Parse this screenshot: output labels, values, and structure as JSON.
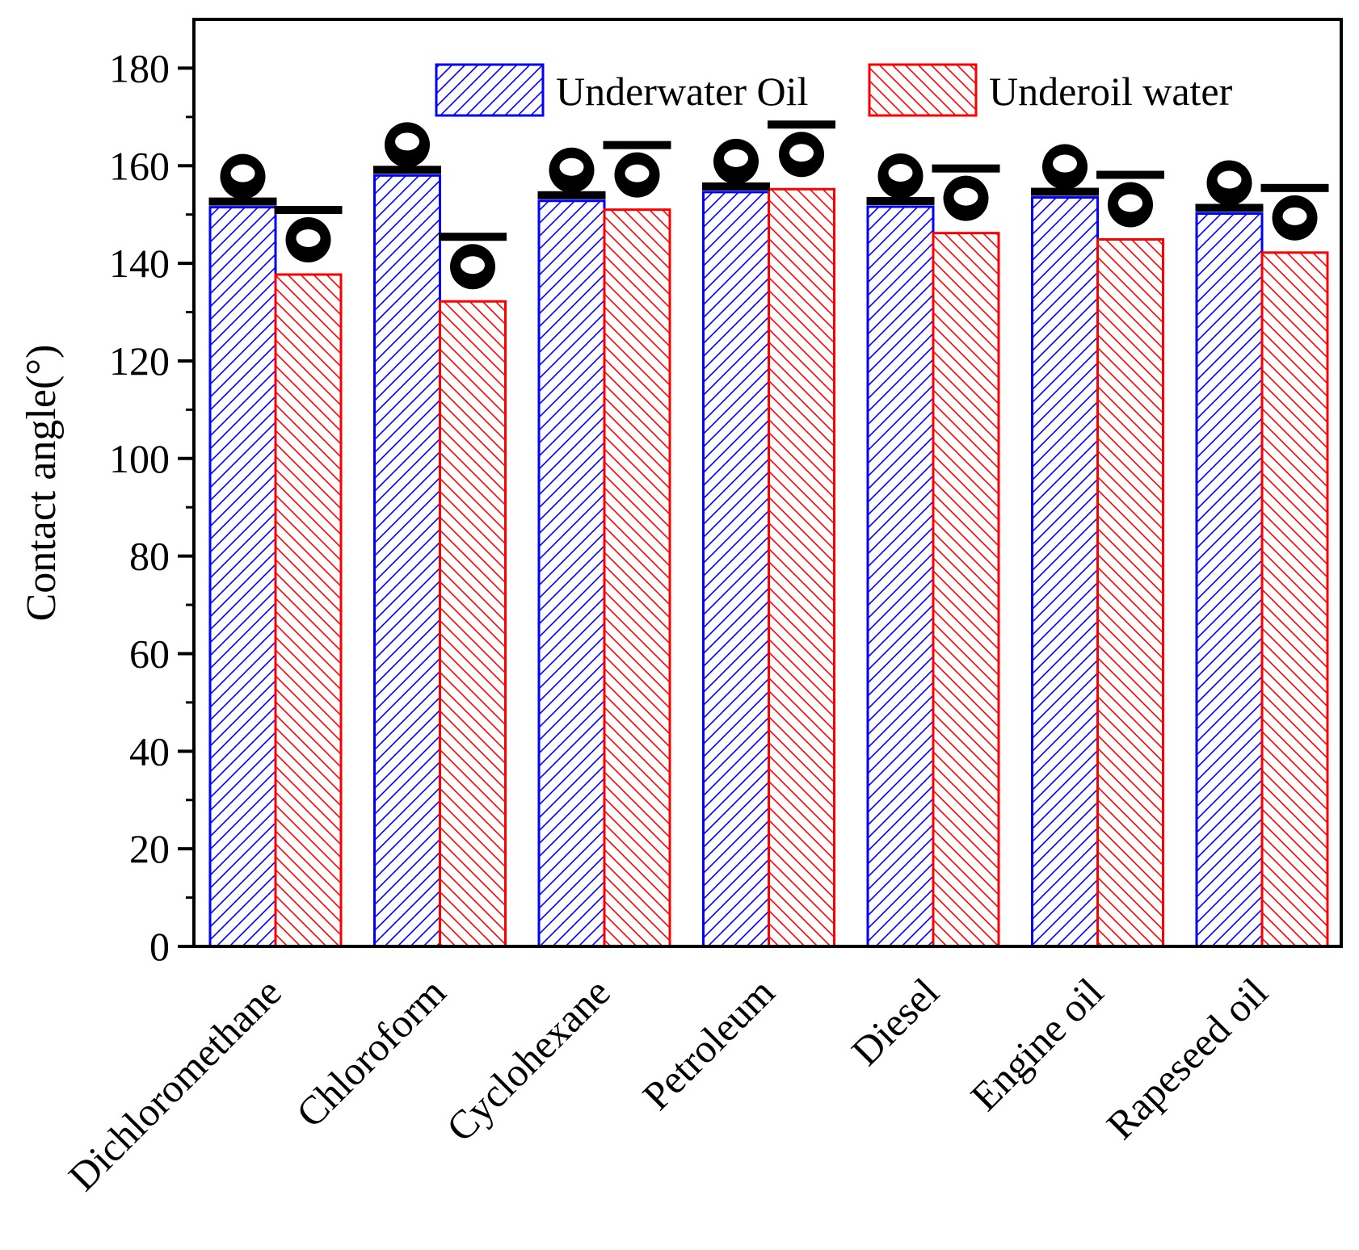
{
  "chart_data": {
    "type": "bar",
    "title": "",
    "xlabel": "",
    "ylabel": "Contact angle(°)",
    "ylim": [
      0,
      190
    ],
    "yticks": [
      0,
      20,
      40,
      60,
      80,
      100,
      120,
      140,
      160,
      180
    ],
    "categories": [
      "Dichloromethane",
      "Chloroform",
      "Cyclohexane",
      "Petroleum",
      "Diesel",
      "Engine oil",
      "Rapeseed oil"
    ],
    "series": [
      {
        "name": "Underwater Oil",
        "color": "#0000ff",
        "hatch": "forward",
        "values": [
          151.5,
          158,
          152.8,
          154.6,
          151.6,
          153.5,
          150.2
        ]
      },
      {
        "name": "Underoil water",
        "color": "#ff0000",
        "hatch": "backward",
        "values": [
          137.7,
          132.2,
          151,
          155.2,
          146.2,
          144.9,
          142.2
        ]
      }
    ],
    "legend": {
      "position": "top-right"
    },
    "grid": false,
    "droplet_icons": "contact-angle droplet images above each bar"
  }
}
